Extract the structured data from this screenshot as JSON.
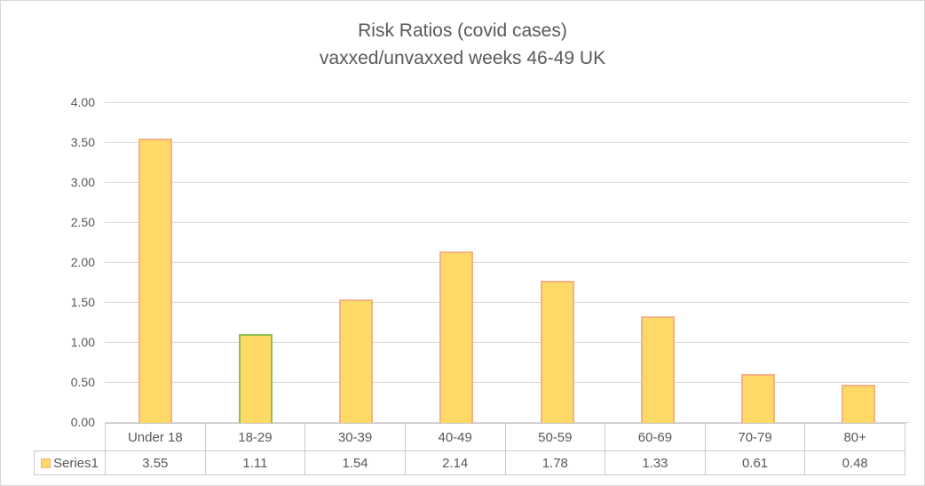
{
  "colors": {
    "title_text": "#595959",
    "axis_text": "#595959",
    "gridline": "#d9d9d9",
    "table_border": "#c9c9c9",
    "frame_border": "#d7d7d7",
    "bar_fill": "#FFD966",
    "bar_border": "#F4B183",
    "bar_border_highlight": "#8CC152"
  },
  "chart_data": {
    "type": "bar",
    "title": "Risk Ratios (covid cases)",
    "subtitle": "vaxxed/unvaxxed weeks 46-49 UK",
    "categories": [
      "Under 18",
      "18-29",
      "30-39",
      "40-49",
      "50-59",
      "60-69",
      "70-79",
      "80+"
    ],
    "series": [
      {
        "name": "Series1",
        "values": [
          3.55,
          1.11,
          1.54,
          2.14,
          1.78,
          1.33,
          0.61,
          0.48
        ],
        "values_display": [
          "3.55",
          "1.11",
          "1.54",
          "2.14",
          "1.78",
          "1.33",
          "0.61",
          "0.48"
        ]
      }
    ],
    "ylim": [
      0,
      4
    ],
    "ytick_labels": [
      "4.00",
      "3.50",
      "3.00",
      "2.50",
      "2.00",
      "1.50",
      "1.00",
      "0.50",
      "0.00"
    ],
    "grid": true,
    "legend": {
      "label": "Series1",
      "position": "data-table-left"
    },
    "highlight_bar_index": 1,
    "data_table_shown": true
  }
}
